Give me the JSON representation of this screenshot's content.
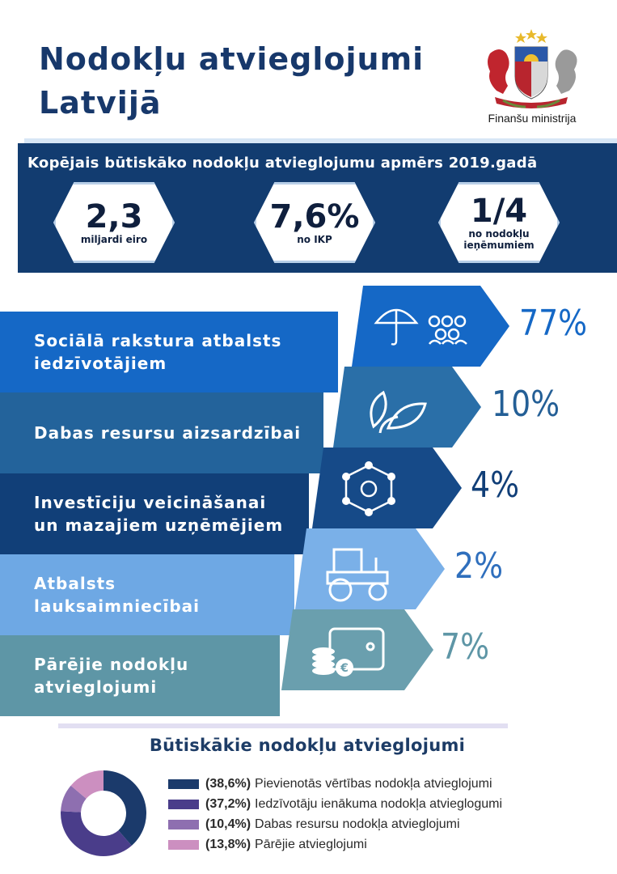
{
  "header": {
    "title_line1": "Nodokļu atvieglojumi",
    "title_line2": "Latvijā",
    "ministry": "Finanšu ministrija",
    "logo_icon": "latvian-coat-of-arms-icon"
  },
  "summary": {
    "title": "Kopējais būtiskāko nodokļu atvieglojumu apmērs 2019.gadā",
    "cards": [
      {
        "value": "2,3",
        "caption_line1": "miljardi eiro",
        "caption_line2": ""
      },
      {
        "value": "7,6%",
        "caption_line1": "no IKP",
        "caption_line2": ""
      },
      {
        "value": "1/4",
        "caption_line1": "no nodokļu",
        "caption_line2": "ieņēmumiem"
      }
    ]
  },
  "categories": [
    {
      "line1": "Sociālā rakstura atbalsts",
      "line2": "iedzīvotājiem",
      "percent": "77%",
      "share": 77,
      "band_color": "#1568c6",
      "arrow_color": "#1568c6",
      "pct_color": "#1568c6",
      "icon": "umbrella-people-icon"
    },
    {
      "line1": "Dabas resursu aizsardzībai",
      "line2": "",
      "percent": "10%",
      "share": 10,
      "band_color": "#23639b",
      "arrow_color": "#2a6fa8",
      "pct_color": "#245f96",
      "icon": "leaves-icon"
    },
    {
      "line1": "Investīciju veicināšanai",
      "line2": "un mazajiem uzņēmējiem",
      "percent": "4%",
      "share": 4,
      "band_color": "#113f78",
      "arrow_color": "#164a88",
      "pct_color": "#113f78",
      "icon": "network-gear-icon"
    },
    {
      "line1": "Atbalsts",
      "line2": "lauksaimniecībai",
      "percent": "2%",
      "share": 2,
      "band_color": "#6ea8e4",
      "arrow_color": "#7ab0e8",
      "pct_color": "#2f6fbd",
      "icon": "tractor-icon"
    },
    {
      "line1": "Pārējie nodokļu",
      "line2": "atvieglojumi",
      "percent": "7%",
      "share": 7,
      "band_color": "#5e96a6",
      "arrow_color": "#6a9fae",
      "pct_color": "#5e96a6",
      "icon": "wallet-coins-icon"
    }
  ],
  "legend": {
    "title": "Būtiskākie nodokļu atvieglojumi",
    "items": [
      {
        "pct": "(38,6%)",
        "label": "Pievienotās vērtības nodokļa atvieglojumi",
        "color": "#1b3a6b"
      },
      {
        "pct": "(37,2%)",
        "label": "Iedzīvotāju ienākuma nodokļa atvieglogumi",
        "color": "#4a3d8a"
      },
      {
        "pct": "(10,4%)",
        "label": "Dabas resursu nodokļa atvieglojumi",
        "color": "#8e6fb0"
      },
      {
        "pct": "(13,8%)",
        "label": "Pārējie atvieglojumi",
        "color": "#cc8fc0"
      }
    ]
  },
  "chart_data": {
    "type": "pie",
    "categories": [
      "Pievienotās vērtības nodokļa atvieglojumi",
      "Iedzīvotāju ienākuma nodokļa atvieglogumi",
      "Dabas resursu nodokļa atvieglojumi",
      "Pārējie atvieglojumi"
    ],
    "values": [
      38.6,
      37.2,
      10.4,
      13.8
    ],
    "colors": [
      "#1b3a6b",
      "#4a3d8a",
      "#8e6fb0",
      "#cc8fc0"
    ],
    "title": "Būtiskākie nodokļu atvieglojumi",
    "donut": true
  }
}
